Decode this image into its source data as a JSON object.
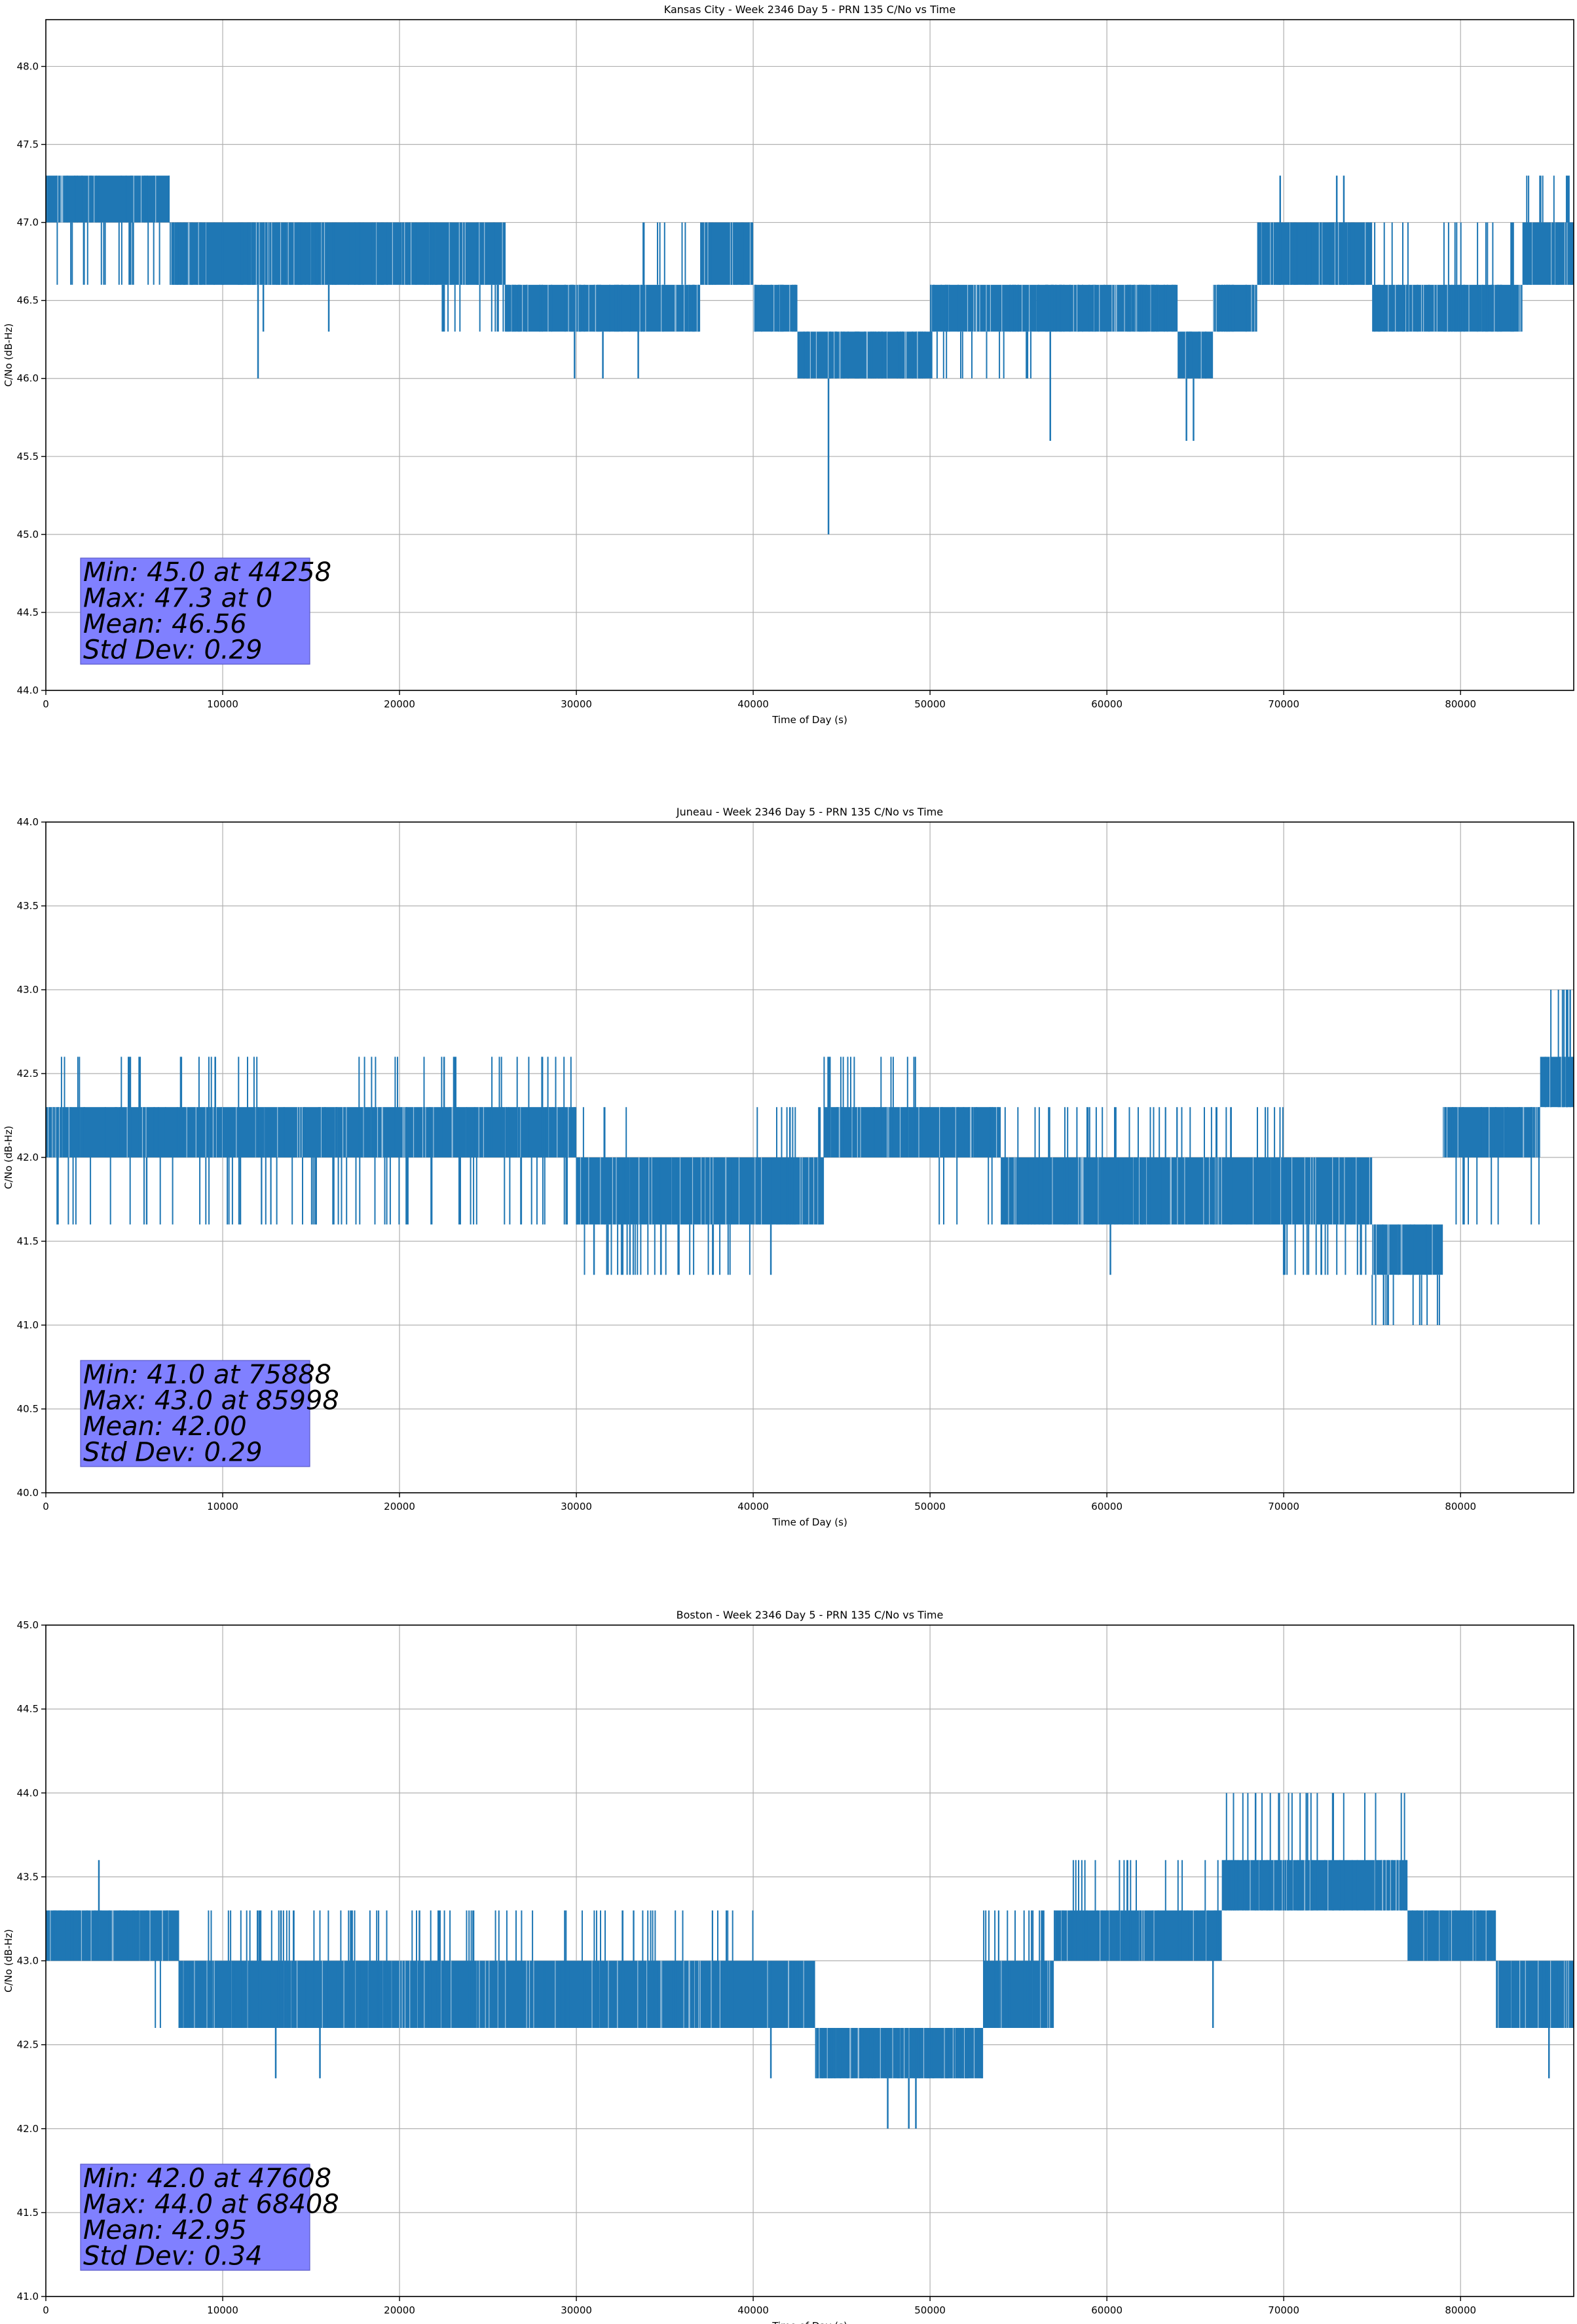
{
  "chart_data": [
    {
      "type": "line",
      "title": "Kansas City - Week 2346 Day 5 - PRN 135 C/No vs Time",
      "xlabel": "Time of Day (s)",
      "ylabel": "C/No (dB-Hz)",
      "xlim": [
        0,
        86400
      ],
      "ylim": [
        44.0,
        48.3
      ],
      "xticks": [
        0,
        10000,
        20000,
        30000,
        40000,
        50000,
        60000,
        70000,
        80000
      ],
      "yticks": [
        44.0,
        44.5,
        45.0,
        45.5,
        46.0,
        46.5,
        47.0,
        47.5,
        48.0
      ],
      "ytick_labels": [
        "44.0",
        "44.5",
        "45.0",
        "45.5",
        "46.0",
        "46.5",
        "47.0",
        "47.5",
        "48.0"
      ],
      "grid": true,
      "series_color": "#1f77b4",
      "stats": [
        "Min: 45.0 at 44258",
        "Max: 47.3 at 0",
        "Mean: 46.56",
        "Std Dev: 0.29"
      ],
      "series": [
        {
          "name": "C/No",
          "segments": [
            {
              "x0": 0,
              "x1": 7000,
              "base": 47.0,
              "alt": [
                47.3,
                46.6
              ]
            },
            {
              "x0": 7000,
              "x1": 22000,
              "base": 46.6,
              "alt": [
                47.0
              ]
            },
            {
              "x0": 22000,
              "x1": 26000,
              "base": 46.6,
              "alt": [
                47.0,
                46.3
              ]
            },
            {
              "x0": 26000,
              "x1": 33000,
              "base": 46.3,
              "alt": [
                46.6
              ]
            },
            {
              "x0": 33000,
              "x1": 37000,
              "base": 46.6,
              "alt": [
                46.3,
                47.0
              ]
            },
            {
              "x0": 37000,
              "x1": 40000,
              "base": 46.6,
              "alt": [
                47.0
              ]
            },
            {
              "x0": 40000,
              "x1": 42500,
              "base": 46.3,
              "alt": [
                46.6
              ]
            },
            {
              "x0": 42500,
              "x1": 50000,
              "base": 46.0,
              "alt": [
                46.3
              ]
            },
            {
              "x0": 50000,
              "x1": 56000,
              "base": 46.3,
              "alt": [
                46.6,
                46.0
              ]
            },
            {
              "x0": 56000,
              "x1": 64000,
              "base": 46.3,
              "alt": [
                46.6
              ]
            },
            {
              "x0": 64000,
              "x1": 66000,
              "base": 46.0,
              "alt": [
                46.3
              ]
            },
            {
              "x0": 66000,
              "x1": 68500,
              "base": 46.3,
              "alt": [
                46.6
              ]
            },
            {
              "x0": 68500,
              "x1": 75000,
              "base": 46.6,
              "alt": [
                47.0
              ]
            },
            {
              "x0": 75000,
              "x1": 83500,
              "base": 46.3,
              "alt": [
                46.6,
                47.0
              ]
            },
            {
              "x0": 83500,
              "x1": 86400,
              "base": 47.0,
              "alt": [
                46.6,
                47.3
              ]
            }
          ],
          "spikes": [
            [
              44258,
              45.0
            ],
            [
              12000,
              46.0
            ],
            [
              56800,
              45.6
            ],
            [
              64500,
              45.6
            ],
            [
              64900,
              45.6
            ],
            [
              29900,
              46.0
            ],
            [
              31500,
              46.0
            ],
            [
              33500,
              46.0
            ],
            [
              0,
              47.3
            ],
            [
              16000,
              46.3
            ],
            [
              12300,
              46.3
            ],
            [
              69800,
              47.3
            ],
            [
              73000,
              47.3
            ],
            [
              73400,
              47.3
            ],
            [
              86000,
              47.3
            ]
          ]
        }
      ]
    },
    {
      "type": "line",
      "title": "Juneau - Week 2346 Day 5 - PRN 135 C/No vs Time",
      "xlabel": "Time of Day (s)",
      "ylabel": "C/No (dB-Hz)",
      "xlim": [
        0,
        86400
      ],
      "ylim": [
        40.0,
        44.0
      ],
      "xticks": [
        0,
        10000,
        20000,
        30000,
        40000,
        50000,
        60000,
        70000,
        80000
      ],
      "yticks": [
        40.0,
        40.5,
        41.0,
        41.5,
        42.0,
        42.5,
        43.0,
        43.5,
        44.0
      ],
      "ytick_labels": [
        "40.0",
        "40.5",
        "41.0",
        "41.5",
        "42.0",
        "42.5",
        "43.0",
        "43.5",
        "44.0"
      ],
      "grid": true,
      "series_color": "#1f77b4",
      "stats": [
        "Min: 41.0 at 75888",
        "Max: 43.0 at 85998",
        "Mean: 42.00",
        "Std Dev: 0.29"
      ],
      "series": [
        {
          "name": "C/No",
          "segments": [
            {
              "x0": 0,
              "x1": 12000,
              "base": 42.0,
              "alt": [
                42.3,
                41.6,
                42.6
              ]
            },
            {
              "x0": 12000,
              "x1": 16500,
              "base": 42.0,
              "alt": [
                42.3,
                41.6
              ]
            },
            {
              "x0": 16500,
              "x1": 30000,
              "base": 42.0,
              "alt": [
                42.3,
                42.6,
                41.6
              ]
            },
            {
              "x0": 30000,
              "x1": 33000,
              "base": 41.6,
              "alt": [
                42.0,
                42.3,
                41.3
              ]
            },
            {
              "x0": 33000,
              "x1": 40000,
              "base": 41.6,
              "alt": [
                42.0,
                41.3
              ]
            },
            {
              "x0": 40000,
              "x1": 44000,
              "base": 41.6,
              "alt": [
                42.0,
                42.3
              ]
            },
            {
              "x0": 44000,
              "x1": 50000,
              "base": 42.0,
              "alt": [
                42.3,
                42.6
              ]
            },
            {
              "x0": 50000,
              "x1": 54000,
              "base": 42.0,
              "alt": [
                42.3,
                41.6
              ]
            },
            {
              "x0": 54000,
              "x1": 62000,
              "base": 41.6,
              "alt": [
                42.0,
                42.3
              ]
            },
            {
              "x0": 62000,
              "x1": 70000,
              "base": 42.0,
              "alt": [
                41.6,
                42.3
              ]
            },
            {
              "x0": 70000,
              "x1": 75000,
              "base": 41.6,
              "alt": [
                42.0,
                41.3
              ]
            },
            {
              "x0": 75000,
              "x1": 79000,
              "base": 41.3,
              "alt": [
                41.6,
                41.0
              ]
            },
            {
              "x0": 79000,
              "x1": 84500,
              "base": 42.0,
              "alt": [
                42.3,
                41.6
              ]
            },
            {
              "x0": 84500,
              "x1": 86400,
              "base": 42.3,
              "alt": [
                42.6,
                43.0
              ]
            }
          ],
          "spikes": [
            [
              75888,
              41.0
            ],
            [
              85998,
              43.0
            ],
            [
              86200,
              43.0
            ],
            [
              31000,
              41.3
            ],
            [
              41000,
              41.3
            ],
            [
              60200,
              41.3
            ],
            [
              70000,
              41.3
            ],
            [
              5700,
              41.6
            ],
            [
              11000,
              41.6
            ]
          ]
        }
      ]
    },
    {
      "type": "line",
      "title": "Boston - Week 2346 Day 5 - PRN 135 C/No vs Time",
      "xlabel": "Time of Day (s)",
      "ylabel": "C/No (dB-Hz)",
      "xlim": [
        0,
        86400
      ],
      "ylim": [
        41.0,
        45.0
      ],
      "xticks": [
        0,
        10000,
        20000,
        30000,
        40000,
        50000,
        60000,
        70000,
        80000
      ],
      "yticks": [
        41.0,
        41.5,
        42.0,
        42.5,
        43.0,
        43.5,
        44.0,
        44.5,
        45.0
      ],
      "ytick_labels": [
        "41.0",
        "41.5",
        "42.0",
        "42.5",
        "43.0",
        "43.5",
        "44.0",
        "44.5",
        "45.0"
      ],
      "grid": true,
      "series_color": "#1f77b4",
      "stats": [
        "Min: 42.0 at 47608",
        "Max: 44.0 at 68408",
        "Mean: 42.95",
        "Std Dev: 0.34"
      ],
      "series": [
        {
          "name": "C/No",
          "segments": [
            {
              "x0": 0,
              "x1": 5500,
              "base": 43.0,
              "alt": [
                43.3
              ]
            },
            {
              "x0": 5500,
              "x1": 7500,
              "base": 43.0,
              "alt": [
                43.3,
                42.6
              ]
            },
            {
              "x0": 7500,
              "x1": 40000,
              "base": 42.6,
              "alt": [
                43.0,
                43.3
              ]
            },
            {
              "x0": 40000,
              "x1": 43500,
              "base": 42.6,
              "alt": [
                43.0
              ]
            },
            {
              "x0": 43500,
              "x1": 53000,
              "base": 42.3,
              "alt": [
                42.6
              ]
            },
            {
              "x0": 53000,
              "x1": 57000,
              "base": 42.6,
              "alt": [
                43.0,
                43.3
              ]
            },
            {
              "x0": 57000,
              "x1": 66500,
              "base": 43.0,
              "alt": [
                43.3,
                43.6
              ]
            },
            {
              "x0": 66500,
              "x1": 77000,
              "base": 43.3,
              "alt": [
                43.6,
                44.0
              ]
            },
            {
              "x0": 77000,
              "x1": 82000,
              "base": 43.0,
              "alt": [
                43.3
              ]
            },
            {
              "x0": 82000,
              "x1": 86400,
              "base": 42.6,
              "alt": [
                43.0
              ]
            }
          ],
          "spikes": [
            [
              47608,
              42.0
            ],
            [
              48800,
              42.0
            ],
            [
              49200,
              42.0
            ],
            [
              68408,
              44.0
            ],
            [
              3000,
              43.6
            ],
            [
              13000,
              42.3
            ],
            [
              15500,
              42.3
            ],
            [
              41000,
              42.3
            ],
            [
              85000,
              42.3
            ],
            [
              66000,
              42.6
            ]
          ]
        }
      ]
    }
  ]
}
